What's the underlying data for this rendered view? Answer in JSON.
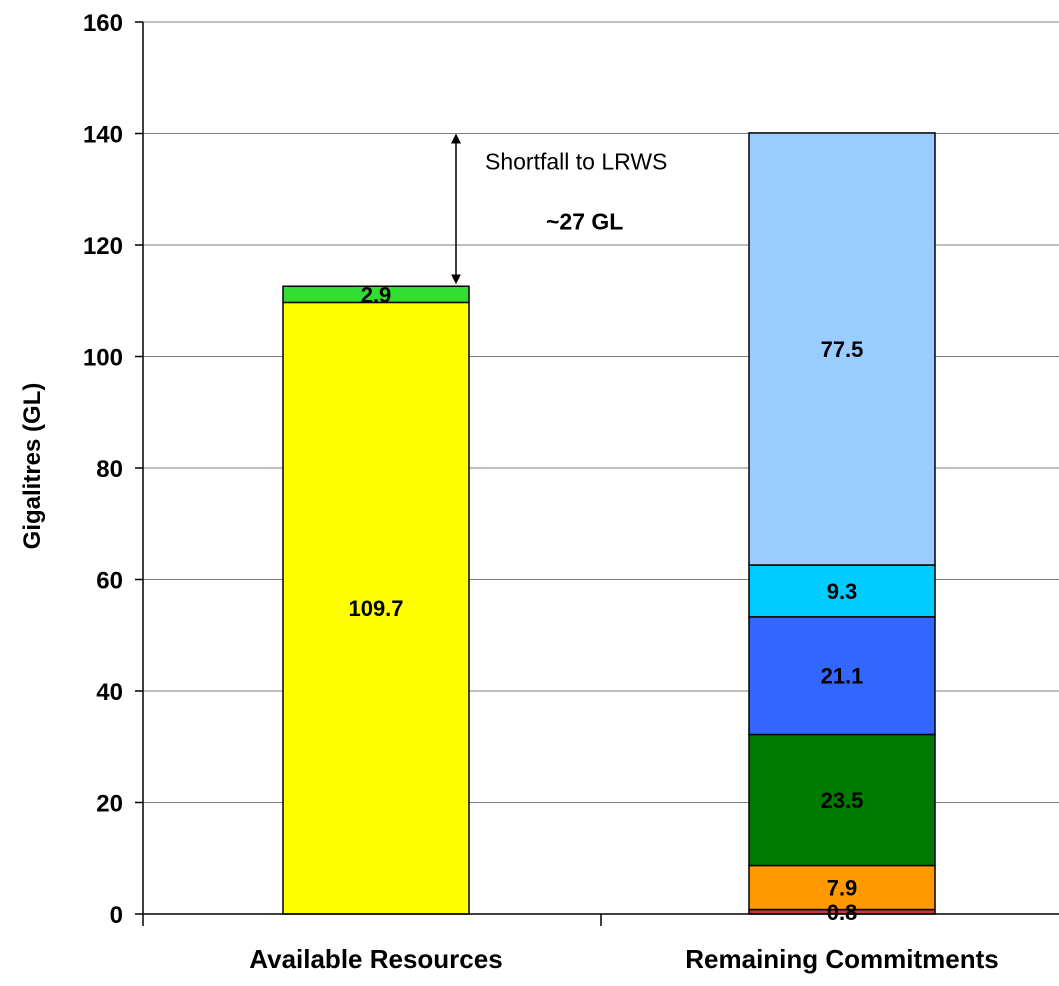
{
  "chart_data": {
    "type": "bar",
    "stacked": true,
    "title": "",
    "xlabel": "",
    "ylabel": "Gigalitres (GL)",
    "ylim": [
      0,
      160
    ],
    "yticks": [
      "0",
      "20",
      "40",
      "60",
      "80",
      "100",
      "120",
      "140",
      "160"
    ],
    "grid": true,
    "legend": "none",
    "categories": [
      "Available Resources",
      "Remaining Commitments"
    ],
    "stacks": [
      {
        "category": "Available Resources",
        "segments": [
          {
            "value": 109.7,
            "label": "109.7",
            "color": "#FFFF00"
          },
          {
            "value": 2.9,
            "label": "2.9",
            "color": "#33DD33"
          }
        ]
      },
      {
        "category": "Remaining Commitments",
        "segments": [
          {
            "value": 0.8,
            "label": "0.8",
            "color": "#CC3333"
          },
          {
            "value": 7.9,
            "label": "7.9",
            "color": "#FF9900"
          },
          {
            "value": 23.5,
            "label": "23.5",
            "color": "#007A00"
          },
          {
            "value": 21.1,
            "label": "21.1",
            "color": "#3366FF"
          },
          {
            "value": 9.3,
            "label": "9.3",
            "color": "#00CCFF"
          },
          {
            "value": 77.5,
            "label": "77.5",
            "color": "#99CCFF"
          }
        ]
      }
    ],
    "annotations": {
      "shortfall_label": "Shortfall to LRWS",
      "shortfall_value": "~27 GL",
      "arrow_from": 112.6,
      "arrow_to": 140
    }
  }
}
